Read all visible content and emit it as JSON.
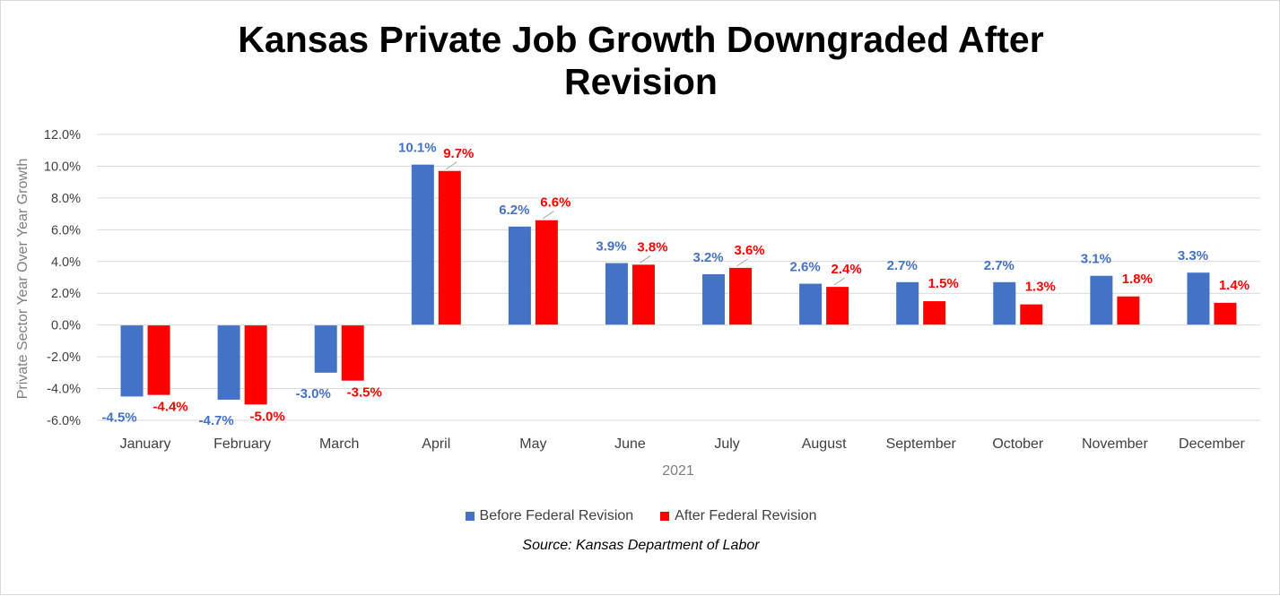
{
  "chart_data": {
    "type": "bar",
    "title_lines": [
      "Kansas Private Job Growth Downgraded After",
      "Revision"
    ],
    "xlabel": "2021",
    "ylabel": "Private Sector Year Over Year Growth",
    "categories": [
      "January",
      "February",
      "March",
      "April",
      "May",
      "June",
      "July",
      "August",
      "September",
      "October",
      "November",
      "December"
    ],
    "series": [
      {
        "name": "Before Federal Revision",
        "color": "#4472c4",
        "values": [
          -4.5,
          -4.7,
          -3.0,
          10.1,
          6.2,
          3.9,
          3.2,
          2.6,
          2.7,
          2.7,
          3.1,
          3.3
        ],
        "labels": [
          "-4.5%",
          "-4.7%",
          "-3.0%",
          "10.1%",
          "6.2%",
          "3.9%",
          "3.2%",
          "2.6%",
          "2.7%",
          "2.7%",
          "3.1%",
          "3.3%"
        ]
      },
      {
        "name": "After Federal Revision",
        "color": "#ff0000",
        "values": [
          -4.4,
          -5.0,
          -3.5,
          9.7,
          6.6,
          3.8,
          3.6,
          2.4,
          1.5,
          1.3,
          1.8,
          1.4
        ],
        "labels": [
          "-4.4%",
          "-5.0%",
          "-3.5%",
          "9.7%",
          "6.6%",
          "3.8%",
          "3.6%",
          "2.4%",
          "1.5%",
          "1.3%",
          "1.8%",
          "1.4%"
        ]
      }
    ],
    "ylim": [
      -6.0,
      12.0
    ],
    "yticks": [
      12.0,
      10.0,
      8.0,
      6.0,
      4.0,
      2.0,
      0.0,
      -2.0,
      -4.0,
      -6.0
    ],
    "ytick_labels": [
      "12.0%",
      "10.0%",
      "8.0%",
      "6.0%",
      "4.0%",
      "2.0%",
      "0.0%",
      "-2.0%",
      "-4.0%",
      "-6.0%"
    ],
    "grid": true,
    "legend_position": "bottom",
    "source": "Source: Kansas Department of Labor"
  }
}
